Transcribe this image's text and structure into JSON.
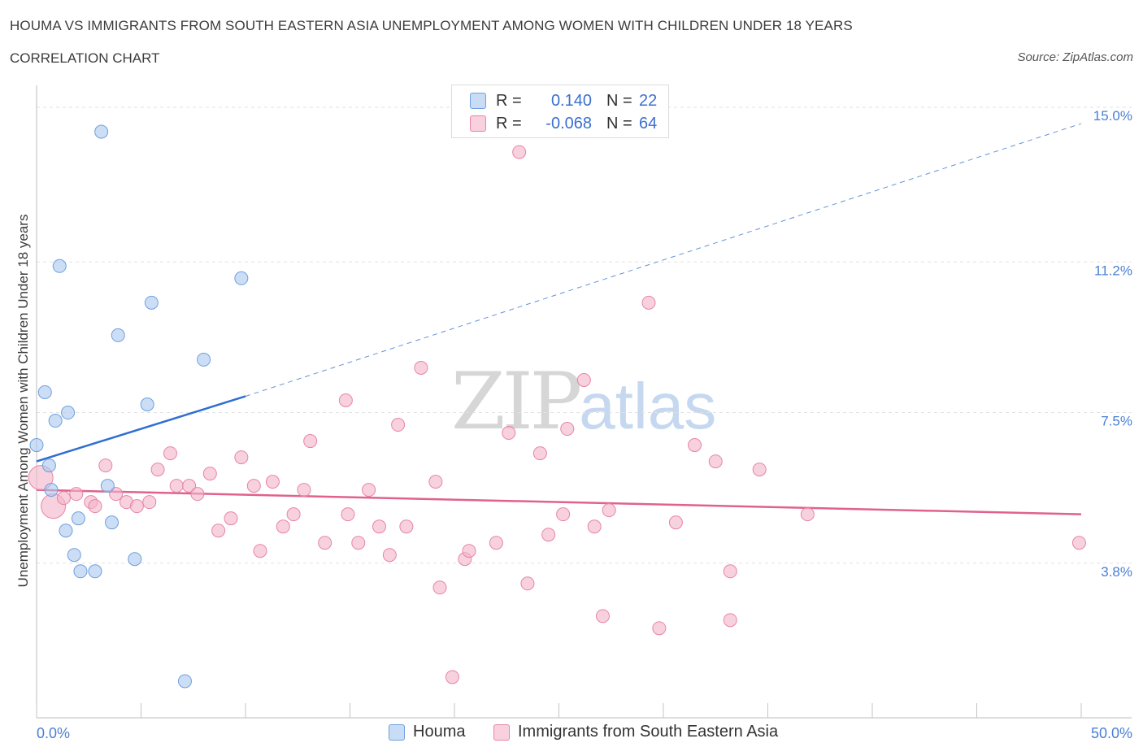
{
  "header": {
    "title": "HOUMA VS IMMIGRANTS FROM SOUTH EASTERN ASIA UNEMPLOYMENT AMONG WOMEN WITH CHILDREN UNDER 18 YEARS",
    "subtitle": "CORRELATION CHART",
    "source": "Source: ZipAtlas.com"
  },
  "watermark": {
    "zip": "ZIP",
    "atlas": "atlas"
  },
  "stats_legend": {
    "rows": [
      {
        "r_label": "R =",
        "r_value": "0.140",
        "n_label": "N =",
        "n_value": "22",
        "color": "#a9c8f0"
      },
      {
        "r_label": "R =",
        "r_value": "-0.068",
        "n_label": "N =",
        "n_value": "64",
        "color": "#f4b3c8"
      }
    ]
  },
  "series_legend": {
    "items": [
      {
        "label": "Houma",
        "color": "#a9c8f0"
      },
      {
        "label": "Immigrants from South Eastern Asia",
        "color": "#f4b3c8"
      }
    ]
  },
  "chart_data": {
    "type": "scatter",
    "xlabel": "",
    "ylabel": "Unemployment Among Women with Children Under 18 years",
    "xlim": [
      0,
      50
    ],
    "ylim": [
      0,
      15.3
    ],
    "x_tick_labels": [
      {
        "value": 0,
        "label": "0.0%"
      },
      {
        "value": 50,
        "label": "50.0%"
      }
    ],
    "y_tick_labels": [
      {
        "value": 3.8,
        "label": "3.8%"
      },
      {
        "value": 7.5,
        "label": "7.5%"
      },
      {
        "value": 11.2,
        "label": "11.2%"
      },
      {
        "value": 15.0,
        "label": "15.0%"
      }
    ],
    "grid": "horizontal dashed",
    "series": [
      {
        "name": "Houma",
        "color": "#a9c8f0",
        "edge": "#6f9fdc",
        "trend": {
          "x": [
            0,
            10
          ],
          "y": [
            6.3,
            7.9
          ],
          "extended_to": [
            50,
            14.6
          ],
          "color": "#2f6fd0"
        },
        "points": [
          {
            "x": 3.1,
            "y": 14.4
          },
          {
            "x": 1.1,
            "y": 11.1
          },
          {
            "x": 9.8,
            "y": 10.8
          },
          {
            "x": 5.5,
            "y": 10.2
          },
          {
            "x": 3.9,
            "y": 9.4
          },
          {
            "x": 8.0,
            "y": 8.8
          },
          {
            "x": 0.4,
            "y": 8.0
          },
          {
            "x": 1.5,
            "y": 7.5
          },
          {
            "x": 0.9,
            "y": 7.3
          },
          {
            "x": 5.3,
            "y": 7.7
          },
          {
            "x": 0.0,
            "y": 6.7
          },
          {
            "x": 0.6,
            "y": 6.2
          },
          {
            "x": 0.7,
            "y": 5.6
          },
          {
            "x": 3.4,
            "y": 5.7
          },
          {
            "x": 2.0,
            "y": 4.9
          },
          {
            "x": 3.6,
            "y": 4.8
          },
          {
            "x": 1.4,
            "y": 4.6
          },
          {
            "x": 1.8,
            "y": 4.0
          },
          {
            "x": 4.7,
            "y": 3.9
          },
          {
            "x": 2.1,
            "y": 3.6
          },
          {
            "x": 2.8,
            "y": 3.6
          },
          {
            "x": 7.1,
            "y": 0.9
          }
        ]
      },
      {
        "name": "Immigrants from South Eastern Asia",
        "color": "#f4b3c8",
        "edge": "#e884a6",
        "trend": {
          "x": [
            0,
            50
          ],
          "y": [
            5.6,
            5.0
          ],
          "color": "#e0628c"
        },
        "points": [
          {
            "x": 0.2,
            "y": 5.9,
            "big": true
          },
          {
            "x": 0.8,
            "y": 5.2,
            "big": true
          },
          {
            "x": 1.3,
            "y": 5.4
          },
          {
            "x": 1.9,
            "y": 5.5
          },
          {
            "x": 2.6,
            "y": 5.3
          },
          {
            "x": 2.8,
            "y": 5.2
          },
          {
            "x": 3.3,
            "y": 6.2
          },
          {
            "x": 3.8,
            "y": 5.5
          },
          {
            "x": 4.3,
            "y": 5.3
          },
          {
            "x": 4.8,
            "y": 5.2
          },
          {
            "x": 5.4,
            "y": 5.3
          },
          {
            "x": 5.8,
            "y": 6.1
          },
          {
            "x": 6.4,
            "y": 6.5
          },
          {
            "x": 6.7,
            "y": 5.7
          },
          {
            "x": 7.3,
            "y": 5.7
          },
          {
            "x": 7.7,
            "y": 5.5
          },
          {
            "x": 8.3,
            "y": 6.0
          },
          {
            "x": 8.7,
            "y": 4.6
          },
          {
            "x": 9.3,
            "y": 4.9
          },
          {
            "x": 9.8,
            "y": 6.4
          },
          {
            "x": 10.4,
            "y": 5.7
          },
          {
            "x": 10.7,
            "y": 4.1
          },
          {
            "x": 11.3,
            "y": 5.8
          },
          {
            "x": 11.8,
            "y": 4.7
          },
          {
            "x": 12.3,
            "y": 5.0
          },
          {
            "x": 12.8,
            "y": 5.6
          },
          {
            "x": 13.1,
            "y": 6.8
          },
          {
            "x": 13.8,
            "y": 4.3
          },
          {
            "x": 14.8,
            "y": 7.8
          },
          {
            "x": 14.9,
            "y": 5.0
          },
          {
            "x": 15.4,
            "y": 4.3
          },
          {
            "x": 15.9,
            "y": 5.6
          },
          {
            "x": 16.4,
            "y": 4.7
          },
          {
            "x": 16.9,
            "y": 4.0
          },
          {
            "x": 17.3,
            "y": 7.2
          },
          {
            "x": 17.7,
            "y": 4.7
          },
          {
            "x": 18.4,
            "y": 8.6
          },
          {
            "x": 19.1,
            "y": 5.8
          },
          {
            "x": 19.3,
            "y": 3.2
          },
          {
            "x": 20.5,
            "y": 3.9
          },
          {
            "x": 20.7,
            "y": 4.1
          },
          {
            "x": 19.9,
            "y": 1.0
          },
          {
            "x": 22.0,
            "y": 4.3
          },
          {
            "x": 22.6,
            "y": 7.0
          },
          {
            "x": 23.1,
            "y": 13.9
          },
          {
            "x": 23.5,
            "y": 3.3
          },
          {
            "x": 24.1,
            "y": 6.5
          },
          {
            "x": 24.5,
            "y": 4.5
          },
          {
            "x": 25.2,
            "y": 5.0
          },
          {
            "x": 25.4,
            "y": 7.1
          },
          {
            "x": 26.2,
            "y": 8.3
          },
          {
            "x": 26.7,
            "y": 4.7
          },
          {
            "x": 27.1,
            "y": 2.5
          },
          {
            "x": 27.4,
            "y": 5.1
          },
          {
            "x": 29.3,
            "y": 10.2
          },
          {
            "x": 29.8,
            "y": 2.2
          },
          {
            "x": 30.6,
            "y": 4.8
          },
          {
            "x": 31.5,
            "y": 6.7
          },
          {
            "x": 32.5,
            "y": 6.3
          },
          {
            "x": 33.2,
            "y": 3.6
          },
          {
            "x": 33.2,
            "y": 2.4
          },
          {
            "x": 34.6,
            "y": 6.1
          },
          {
            "x": 36.9,
            "y": 5.0
          },
          {
            "x": 49.9,
            "y": 4.3
          }
        ]
      }
    ]
  }
}
